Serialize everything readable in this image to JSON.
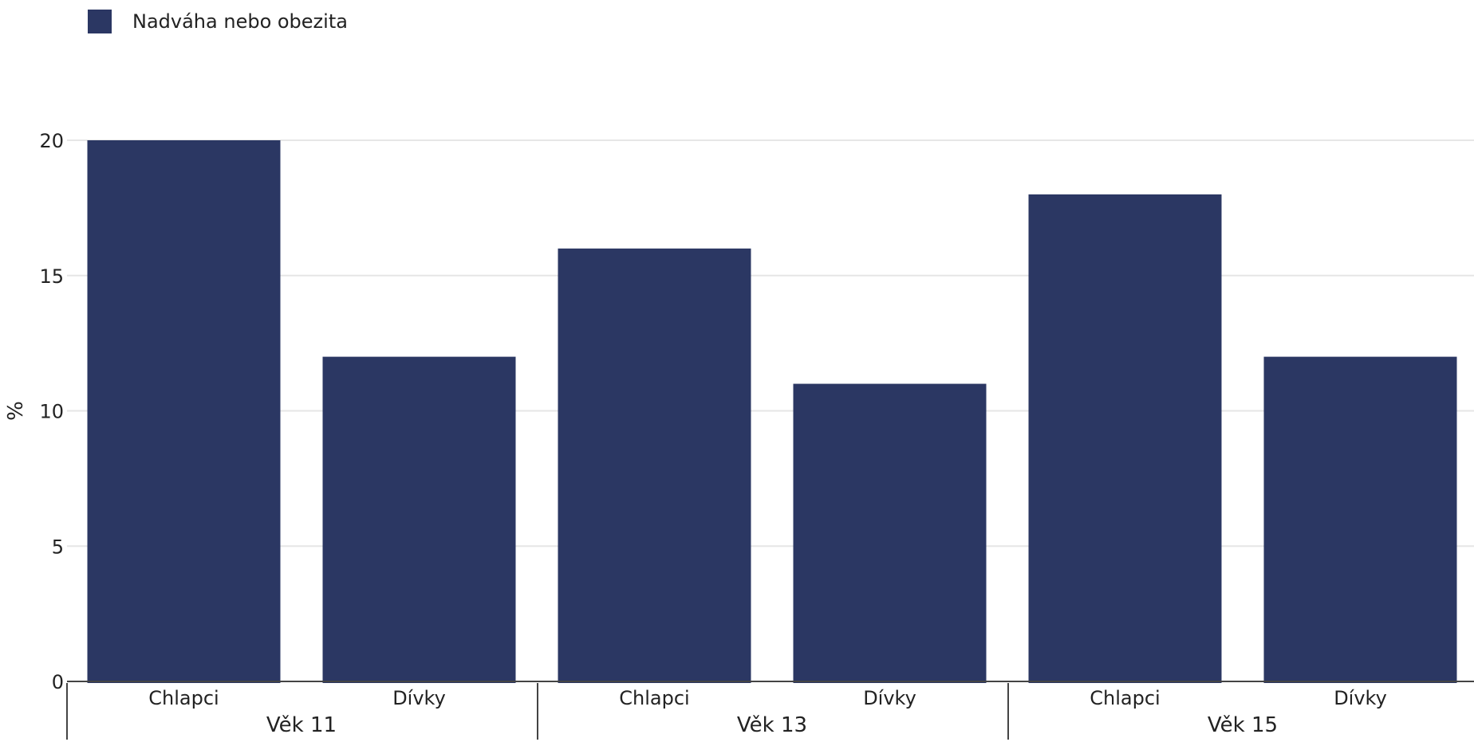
{
  "legend": {
    "label": "Nadváha nebo obezita"
  },
  "colors": {
    "bar": "#2b3763",
    "grid": "#e6e6e6",
    "axis": "#444444"
  },
  "chart_data": {
    "type": "bar",
    "title": "",
    "xlabel": "",
    "ylabel": "%",
    "ylim": [
      0,
      20
    ],
    "yticks": [
      0,
      5,
      10,
      15,
      20
    ],
    "grid": true,
    "legend_position": "top-left",
    "groups": [
      {
        "label": "Věk 11",
        "categories": [
          "Chlapci",
          "Dívky"
        ]
      },
      {
        "label": "Věk 13",
        "categories": [
          "Chlapci",
          "Dívky"
        ]
      },
      {
        "label": "Věk 15",
        "categories": [
          "Chlapci",
          "Dívky"
        ]
      }
    ],
    "series": [
      {
        "name": "Nadváha nebo obezita",
        "values": [
          20,
          12,
          16,
          11,
          18,
          12
        ]
      }
    ]
  }
}
